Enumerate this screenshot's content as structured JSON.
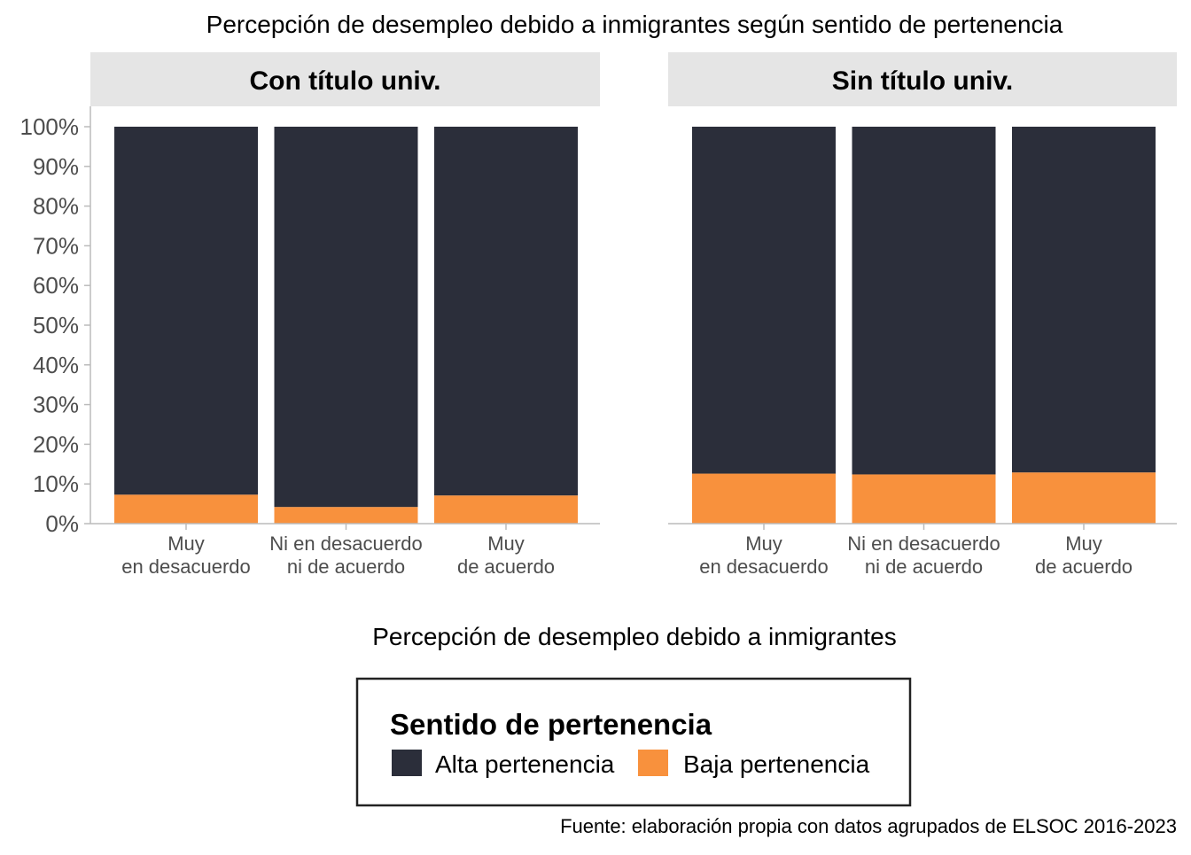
{
  "chart_data": {
    "type": "bar",
    "stacked": true,
    "title": "Percepción de desempleo debido a inmigrantes según sentido de pertenencia",
    "xlabel": "Percepción de desempleo debido a inmigrantes",
    "ylabel": "",
    "ylim": [
      0,
      1
    ],
    "y_ticks": [
      "0%",
      "10%",
      "20%",
      "30%",
      "40%",
      "50%",
      "60%",
      "70%",
      "80%",
      "90%",
      "100%"
    ],
    "categories": [
      [
        "Muy",
        "en desacuerdo"
      ],
      [
        "Ni en desacuerdo",
        "ni de acuerdo"
      ],
      [
        "Muy",
        "de acuerdo"
      ]
    ],
    "legend": {
      "title": "Sentido de pertenencia",
      "placement": "bottom",
      "entries": [
        {
          "name": "Alta pertenencia",
          "color": "#2b2e3a"
        },
        {
          "name": "Baja pertenencia",
          "color": "#f8913d"
        }
      ]
    },
    "panels": [
      {
        "label": "Con título univ.",
        "series": [
          {
            "name": "Baja pertenencia",
            "values": [
              0.073,
              0.042,
              0.071
            ]
          },
          {
            "name": "Alta pertenencia",
            "values": [
              0.927,
              0.958,
              0.929
            ]
          }
        ]
      },
      {
        "label": "Sin título univ.",
        "series": [
          {
            "name": "Baja pertenencia",
            "values": [
              0.126,
              0.124,
              0.129
            ]
          },
          {
            "name": "Alta pertenencia",
            "values": [
              0.874,
              0.876,
              0.871
            ]
          }
        ]
      }
    ],
    "caption": "Fuente: elaboración propia con datos agrupados de ELSOC 2016-2023",
    "grid": false
  }
}
